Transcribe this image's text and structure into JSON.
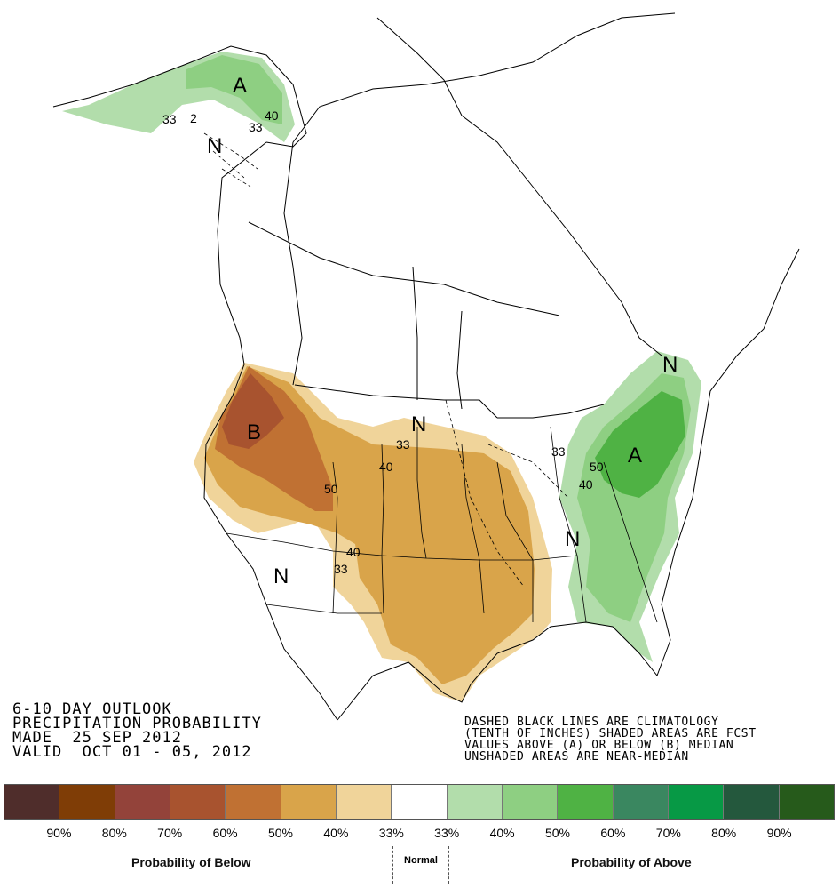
{
  "title": {
    "line1": "6-10 DAY OUTLOOK",
    "line2": "PRECIPITATION PROBABILITY",
    "line3": "MADE  25 SEP 2012",
    "line4": "VALID  OCT 01 - 05, 2012"
  },
  "note": {
    "line1": "DASHED BLACK LINES ARE CLIMATOLOGY",
    "line2": "(TENTH OF INCHES) SHADED AREAS ARE FCST",
    "line3": "VALUES ABOVE (A) OR BELOW (B) MEDIAN",
    "line4": "UNSHADED AREAS ARE NEAR-MEDIAN"
  },
  "map_labels": {
    "alaska_above": "A",
    "alaska_normal": "N",
    "northeast_normal": "N",
    "dakota_normal": "N",
    "west_below": "B",
    "east_above": "A",
    "tennessee_normal": "N",
    "southwest_normal": "N"
  },
  "contour_labels": {
    "ak_33_a": "33",
    "ak_2": "2",
    "ak_33_b": "33",
    "ak_40": "40",
    "plains_33": "33",
    "plains_40": "40",
    "west_50": "50",
    "sw_40": "40",
    "sw_33": "33",
    "east_33": "33",
    "east_50": "50",
    "east_40": "40"
  },
  "legend": {
    "colors": [
      "#4f2d2b",
      "#7f3d06",
      "#93433a",
      "#a8532f",
      "#c07133",
      "#d9a44a",
      "#f0d49a",
      "#ffffff",
      "#b2ddab",
      "#8ecf82",
      "#4fb244",
      "#3a8760",
      "#079945",
      "#24583d",
      "#265a1b"
    ],
    "ticks": [
      "90%",
      "80%",
      "70%",
      "60%",
      "50%",
      "40%",
      "33%",
      "33%",
      "40%",
      "50%",
      "60%",
      "70%",
      "80%",
      "90%"
    ],
    "below_caption": "Probability of Below",
    "normal_caption": "Normal",
    "above_caption": "Probability of Above"
  }
}
